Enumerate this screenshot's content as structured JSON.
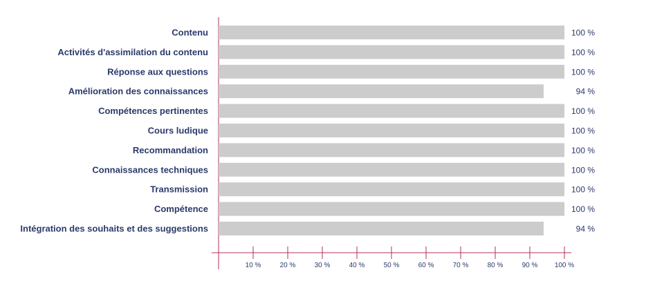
{
  "chart_data": {
    "type": "bar",
    "orientation": "horizontal",
    "categories": [
      "Contenu",
      "Activités d'assimilation du contenu",
      "Réponse aux questions",
      "Amélioration des connaissances",
      "Compétences pertinentes",
      "Cours ludique",
      "Recommandation",
      "Connaissances techniques",
      "Transmission",
      "Compétence",
      "Intégration des souhaits et des suggestions"
    ],
    "values": [
      100,
      100,
      100,
      94,
      100,
      100,
      100,
      100,
      100,
      100,
      94
    ],
    "value_labels": [
      "100 %",
      "100 %",
      "100 %",
      "94 %",
      "100 %",
      "100 %",
      "100 %",
      "100 %",
      "100 %",
      "100 %",
      "94 %"
    ],
    "xlim": [
      0,
      100
    ],
    "xticks": [
      10,
      20,
      30,
      40,
      50,
      60,
      70,
      80,
      90,
      100
    ],
    "xtick_labels": [
      "10 %",
      "20 %",
      "30 %",
      "40 %",
      "50 %",
      "60 %",
      "70 %",
      "80 %",
      "90 %",
      "100 %"
    ],
    "title": "",
    "xlabel": "",
    "ylabel": "",
    "grid": false,
    "colors": {
      "bar": "#cccccc",
      "axis": "#b0305a",
      "text": "#2b3a6b"
    }
  }
}
